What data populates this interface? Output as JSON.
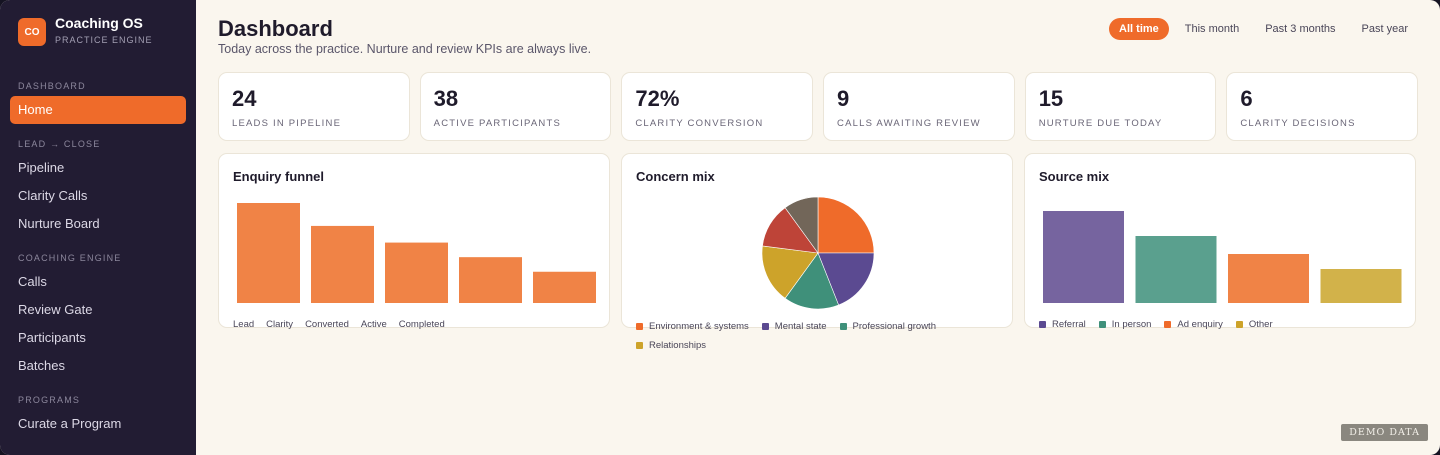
{
  "brand": {
    "logo": "CO",
    "title": "Coaching OS",
    "subtitle": "PRACTICE ENGINE"
  },
  "sidebar": {
    "sections": [
      "DASHBOARD",
      "LEAD → CLOSE",
      "COACHING ENGINE",
      "PROGRAMS"
    ],
    "items": [
      "Home",
      "Pipeline",
      "Clarity Calls",
      "Nurture Board",
      "Calls",
      "Review Gate",
      "Participants",
      "Batches",
      "Curate a Program"
    ],
    "active": "Home"
  },
  "header": {
    "title": "Dashboard",
    "subtitle": "Today across the practice. Nurture and review KPIs are always live.",
    "filters": [
      "All time",
      "This month",
      "Past 3 months",
      "Past year"
    ],
    "active_filter": "All time"
  },
  "kpis": [
    {
      "value": "24",
      "label": "LEADS IN PIPELINE"
    },
    {
      "value": "38",
      "label": "ACTIVE PARTICIPANTS"
    },
    {
      "value": "72%",
      "label": "CLARITY CONVERSION"
    },
    {
      "value": "9",
      "label": "CALLS AWAITING REVIEW"
    },
    {
      "value": "15",
      "label": "NURTURE DUE TODAY"
    },
    {
      "value": "6",
      "label": "CLARITY DECISIONS"
    }
  ],
  "cards": {
    "funnel_title": "Enquiry funnel",
    "concern_title": "Concern mix",
    "source_title": "Source mix"
  },
  "chart_data": [
    {
      "type": "bar",
      "title": "Enquiry funnel",
      "categories": [
        "Lead",
        "Clarity",
        "Converted",
        "Active",
        "Completed"
      ],
      "values": [
        24,
        18.5,
        14.5,
        11,
        7.5
      ],
      "ylim": [
        0,
        24
      ],
      "color": "#f08346",
      "grid": false
    },
    {
      "type": "pie",
      "title": "Concern mix",
      "slices": [
        {
          "name": "Environment & systems",
          "value": 25,
          "color": "#ef6b2a"
        },
        {
          "name": "Mental state",
          "value": 19,
          "color": "#5b4a91"
        },
        {
          "name": "Professional growth",
          "value": 16,
          "color": "#3f907a"
        },
        {
          "name": "Relationships",
          "value": 17,
          "color": "#cda32a"
        },
        {
          "name": "",
          "value": 13,
          "color": "#be4438"
        },
        {
          "name": "",
          "value": 10,
          "color": "#726659"
        }
      ],
      "legend_placement": "bottom"
    },
    {
      "type": "bar",
      "title": "Source mix",
      "categories": [
        "Referral",
        "In person",
        "Ad enquiry",
        "Other"
      ],
      "values": [
        92,
        67,
        49,
        34
      ],
      "colors": [
        "#76649f",
        "#5aa08e",
        "#f08346",
        "#d2b24a"
      ],
      "legend_swatches": [
        "#5b4a91",
        "#3f907a",
        "#ef6b2a",
        "#cda32a"
      ],
      "ylim": [
        0,
        100
      ],
      "grid": false,
      "legend_placement": "bottom"
    }
  ],
  "watermark": "DEMO DATA"
}
